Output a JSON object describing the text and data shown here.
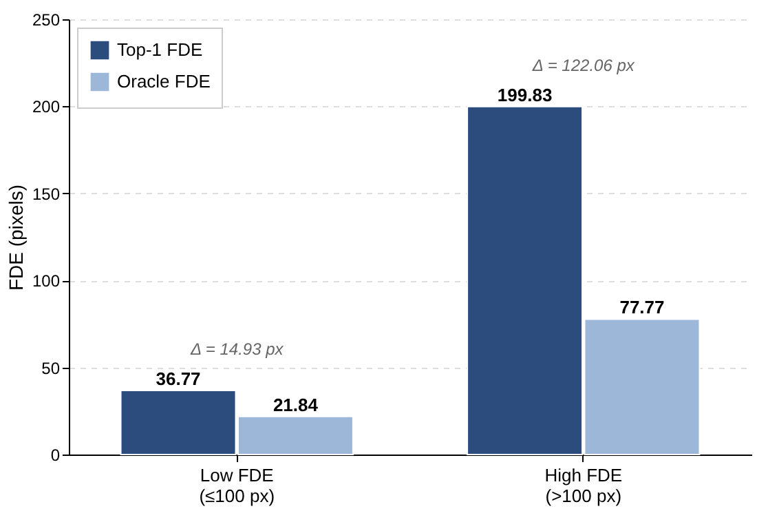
{
  "chart_data": {
    "type": "bar",
    "ylabel": "FDE (pixels)",
    "categories": [
      "Low FDE\n(≤100 px)",
      "High FDE\n(>100 px)"
    ],
    "series": [
      {
        "name": "Top-1 FDE",
        "color": "#2c4c7e",
        "values": [
          36.77,
          199.83
        ]
      },
      {
        "name": "Oracle FDE",
        "color": "#9cb7d8",
        "values": [
          21.84,
          77.77
        ]
      }
    ],
    "ylim": [
      0,
      250
    ],
    "yticks": [
      0,
      50,
      100,
      150,
      200,
      250
    ],
    "grid": "y",
    "legend": "top left",
    "data_labels": true,
    "annotations": [
      "Δ = 14.93 px",
      "Δ = 122.06 px"
    ]
  }
}
